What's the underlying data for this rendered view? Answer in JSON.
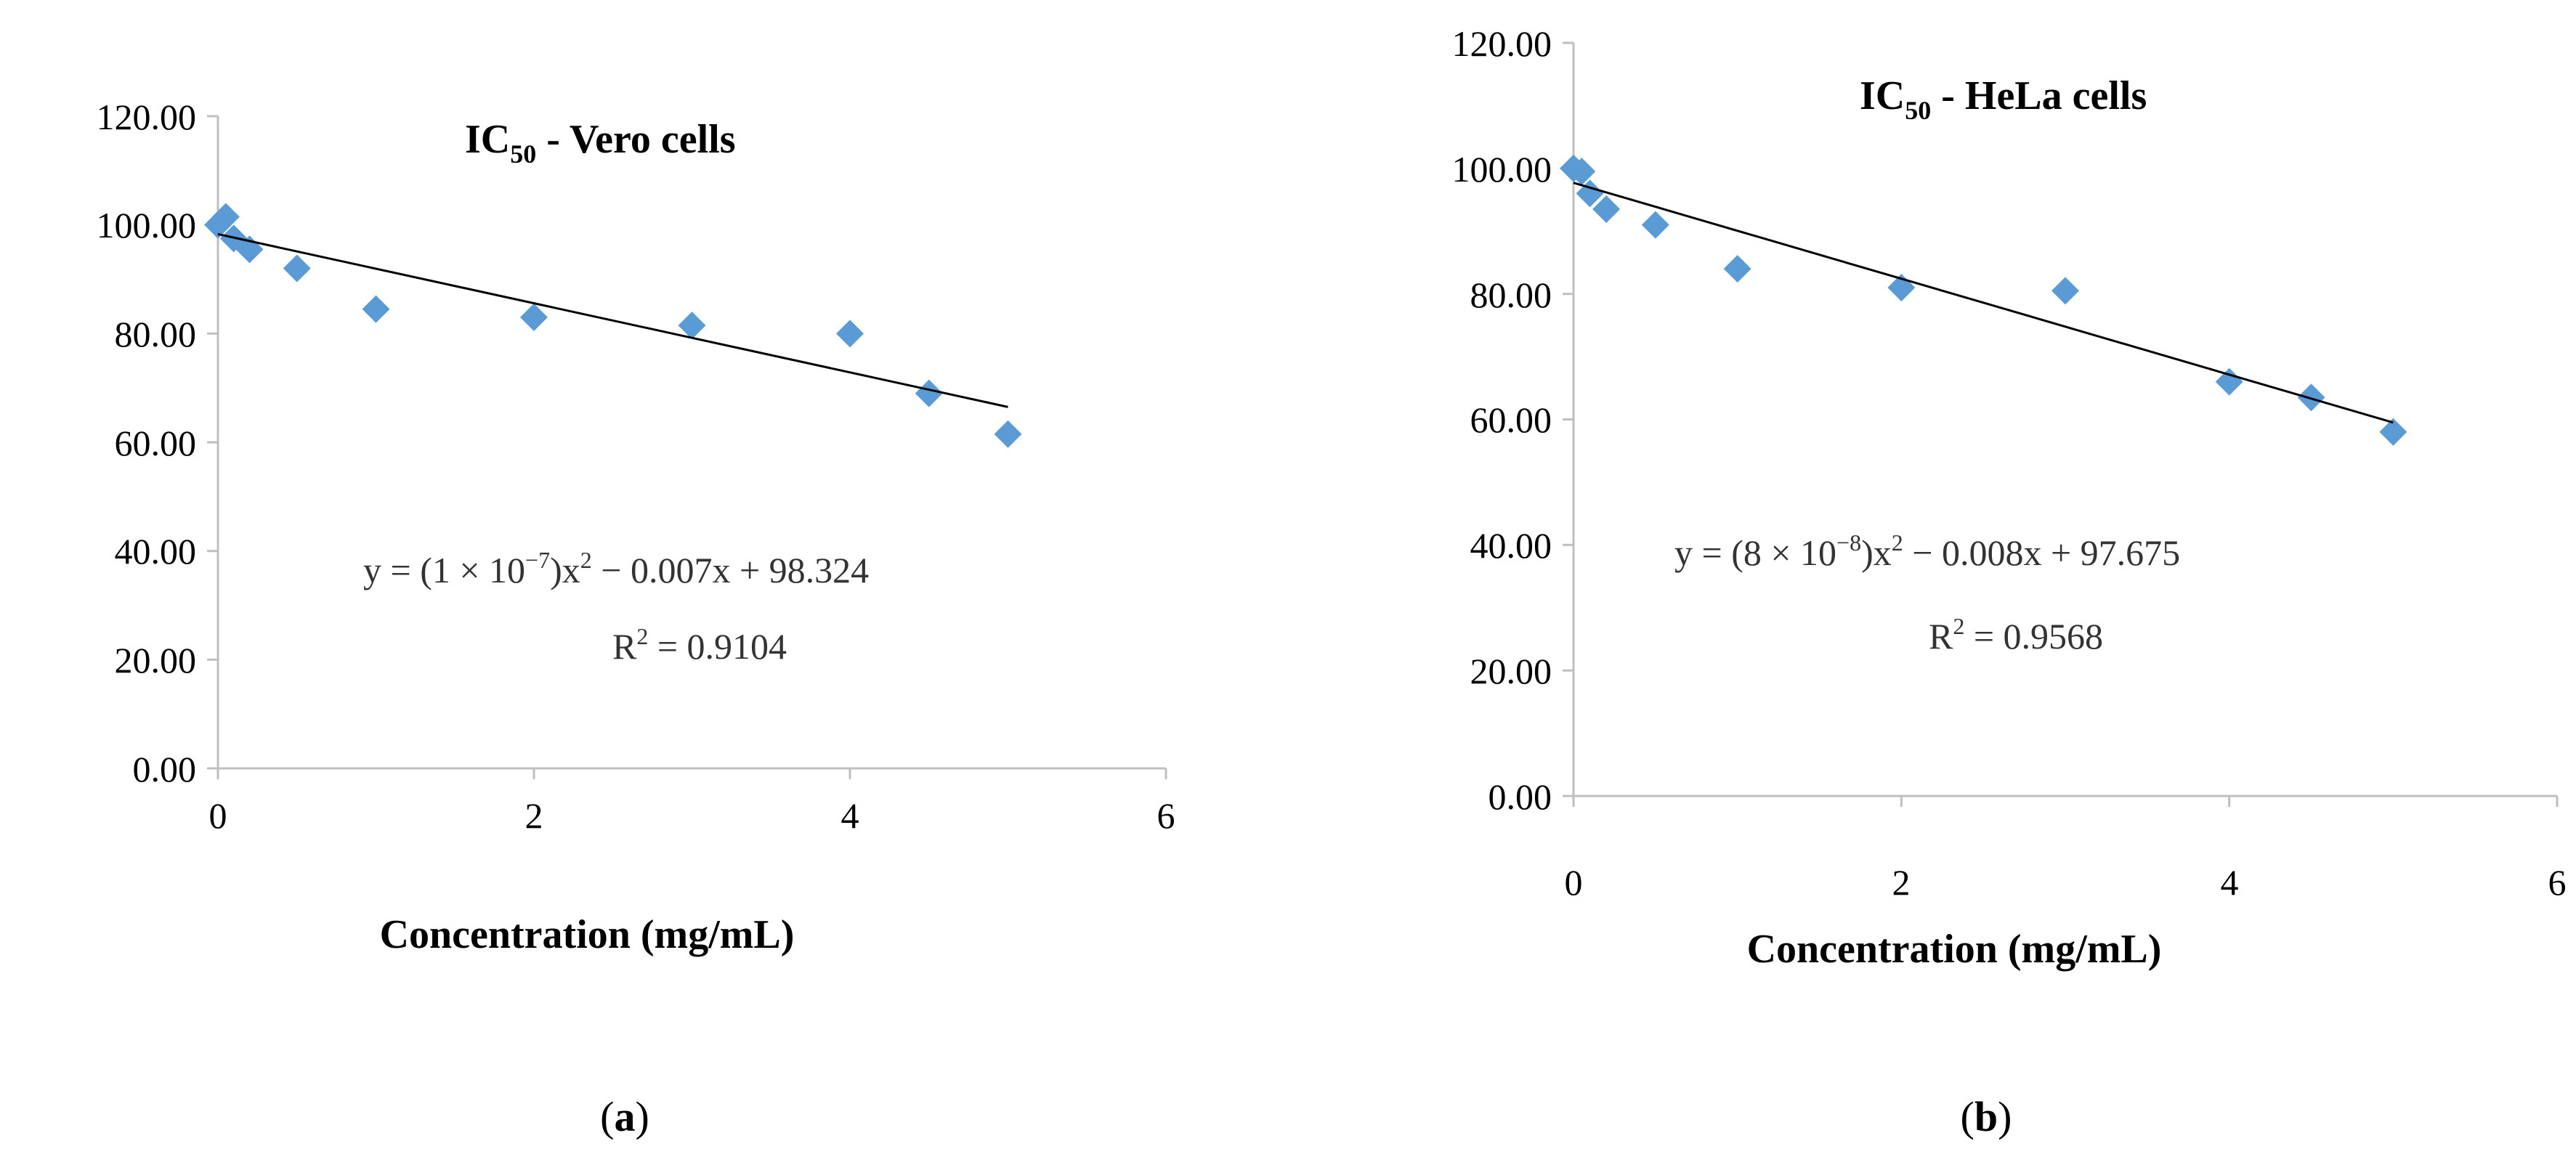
{
  "chart_data": [
    {
      "type": "scatter",
      "title_main": "IC",
      "title_sub": "50",
      "title_rest": " - Vero cells",
      "xlabel": "Concentration (mg/mL)",
      "ylabel": "",
      "xlim": [
        0,
        6
      ],
      "ylim": [
        0,
        120
      ],
      "xticks": [
        0,
        2,
        4,
        6
      ],
      "xtick_labels": [
        "0",
        "2",
        "4",
        "6"
      ],
      "yticks": [
        0,
        20,
        40,
        60,
        80,
        100,
        120
      ],
      "ytick_labels": [
        "0.00",
        "20.00",
        "40.00",
        "60.00",
        "80.00",
        "100.00",
        "120.00"
      ],
      "x": [
        0,
        0.05,
        0.1,
        0.2,
        0.5,
        1.0,
        2.0,
        3.0,
        4.0,
        4.5,
        5.0
      ],
      "y": [
        100.0,
        101.5,
        97.5,
        95.5,
        92.0,
        84.5,
        83.0,
        81.5,
        80.0,
        69.0,
        61.5
      ],
      "trendline": {
        "x": [
          0,
          5.0
        ],
        "y": [
          98.3,
          66.5
        ]
      },
      "equation": {
        "lead": "y = (1 × 10",
        "exp": "−7",
        "mid": ")x",
        "sq": "2",
        "tail": " − 0.007x + 98.324"
      },
      "r_squared": {
        "lead": "R",
        "sq": "2",
        "tail": " = 0.9104"
      },
      "marker_color": "#5b9bd5",
      "line_color": "#000000",
      "caption": {
        "open": "(",
        "letter": "a",
        "close": ")"
      }
    },
    {
      "type": "scatter",
      "title_main": "IC",
      "title_sub": "50",
      "title_rest": " - HeLa cells",
      "xlabel": "Concentration (mg/mL)",
      "ylabel": "",
      "xlim": [
        0,
        6
      ],
      "ylim": [
        0,
        120
      ],
      "xticks": [
        0,
        2,
        4,
        6
      ],
      "xtick_labels": [
        "0",
        "2",
        "4",
        "6"
      ],
      "yticks": [
        0,
        20,
        40,
        60,
        80,
        100,
        120
      ],
      "ytick_labels": [
        "0.00",
        "20.00",
        "40.00",
        "60.00",
        "80.00",
        "100.00",
        "120.00"
      ],
      "x": [
        0,
        0.05,
        0.1,
        0.2,
        0.5,
        1.0,
        2.0,
        3.0,
        4.0,
        4.5,
        5.0
      ],
      "y": [
        100.0,
        99.5,
        96.0,
        93.5,
        91.0,
        84.0,
        81.0,
        80.5,
        66.0,
        63.5,
        58.0
      ],
      "trendline": {
        "x": [
          0,
          5.0
        ],
        "y": [
          97.7,
          59.5
        ]
      },
      "equation": {
        "lead": "y = (8 × 10",
        "exp": "−8",
        "mid": ")x",
        "sq": "2",
        "tail": " − 0.008x + 97.675"
      },
      "r_squared": {
        "lead": "R",
        "sq": "2",
        "tail": " = 0.9568"
      },
      "marker_color": "#5b9bd5",
      "line_color": "#000000",
      "caption": {
        "open": "(",
        "letter": "b",
        "close": ")"
      }
    }
  ]
}
